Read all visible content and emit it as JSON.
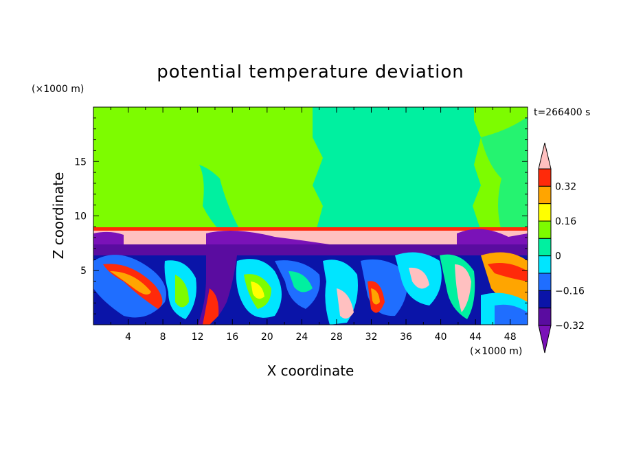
{
  "chart_data": {
    "type": "heatmap",
    "title": "potential temperature deviation",
    "xlabel": "X coordinate",
    "ylabel": "Z coordinate",
    "x_unit": "(×1000 m)",
    "y_unit": "(×1000 m)",
    "time_label": "t=266400 s",
    "xlim": [
      0,
      50
    ],
    "ylim": [
      0,
      20
    ],
    "x_ticks": [
      4,
      8,
      12,
      16,
      20,
      24,
      28,
      32,
      36,
      40,
      44,
      48
    ],
    "y_ticks": [
      5,
      10,
      15
    ],
    "colorbar": {
      "labels": [
        "0.32",
        "0.16",
        "0",
        "−0.16",
        "−0.32"
      ],
      "levels": [
        -0.4,
        -0.32,
        -0.24,
        -0.16,
        -0.08,
        0,
        0.08,
        0.16,
        0.24,
        0.32,
        0.4
      ],
      "colors": [
        "#7a12b8",
        "#5a0ca0",
        "#0a14a8",
        "#1f6eff",
        "#00e5ff",
        "#00f0a0",
        "#7dfc00",
        "#ffff00",
        "#ffa500",
        "#ff2a0a",
        "#ffc0c0"
      ]
    },
    "field_description": "2D field over X 0-50 km, Z 0-20 km"
  }
}
